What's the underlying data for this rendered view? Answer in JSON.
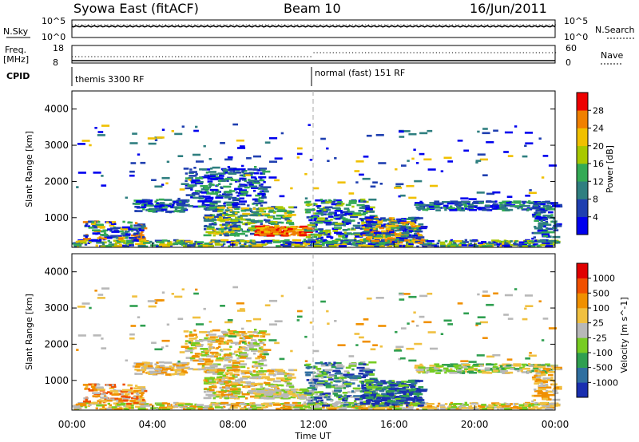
{
  "header": {
    "station": "Syowa East (fitACF)",
    "beam": "Beam 10",
    "date": "16/Jun/2011"
  },
  "top_panels": {
    "nsky_label": "N.Sky",
    "nsky_ticks": [
      "10^5",
      "10^0"
    ],
    "nsearch_label": "N.Search",
    "nsearch_ticks": [
      "10^5",
      "10^0"
    ],
    "freq_label": "Freq.",
    "freq_unit": "[MHz]",
    "freq_ticks": [
      "18",
      "8"
    ],
    "nave_label": "Nave",
    "nave_ticks": [
      "60",
      "0"
    ],
    "cpid_label": "CPID",
    "cpid_segments": [
      {
        "label": "themis 3300 RF",
        "start_hour": 0
      },
      {
        "label": "normal (fast) 151 RF",
        "start_hour": 12
      }
    ]
  },
  "colors": {
    "power_scale": [
      "#0000ee",
      "#1f3fb0",
      "#2f7f80",
      "#33aa55",
      "#a8c800",
      "#f0c000",
      "#f08000",
      "#ee0000"
    ],
    "velocity_scale": [
      "#1a2fb0",
      "#2f6fa0",
      "#2f9f50",
      "#77cc22",
      "#b8b8b8",
      "#f0c040",
      "#f09000",
      "#f05000",
      "#e00000"
    ]
  },
  "chart_data": [
    {
      "type": "heatmap",
      "panel": "power",
      "ylabel": "Slant Range [km]",
      "yticks": [
        "1000",
        "2000",
        "3000",
        "4000"
      ],
      "ylim": [
        180,
        4500
      ],
      "xlim": [
        0,
        24
      ],
      "colorbar_label": "Power [dB]",
      "colorbar_ticks": [
        "4",
        "8",
        "12",
        "16",
        "20",
        "24",
        "28"
      ],
      "colorbar_range": [
        0,
        32
      ]
    },
    {
      "type": "heatmap",
      "panel": "velocity",
      "xlabel": "Time UT",
      "xticks": [
        "00:00",
        "04:00",
        "08:00",
        "12:00",
        "16:00",
        "20:00",
        "00:00"
      ],
      "ylabel": "Slant Range [km]",
      "yticks": [
        "1000",
        "2000",
        "3000",
        "4000"
      ],
      "ylim": [
        180,
        4500
      ],
      "xlim": [
        0,
        24
      ],
      "colorbar_label": "Velocity [m s^-1]",
      "colorbar_ticks": [
        "1000",
        "500",
        "100",
        "25",
        "-25",
        "-100",
        "-500",
        "-1000"
      ]
    }
  ]
}
